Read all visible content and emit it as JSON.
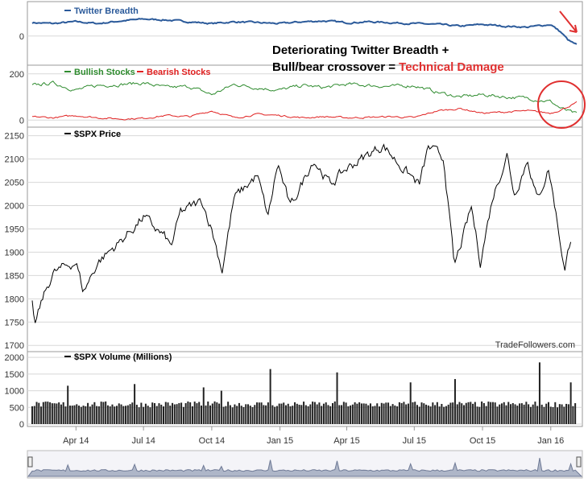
{
  "annotation": {
    "line1": "Deteriorating Twitter Breadth +",
    "line2_prefix": "Bull/bear crossover = ",
    "line2_highlight": "Technical Damage",
    "highlight_color": "#e03030"
  },
  "credit": "TradeFollowers.com",
  "colors": {
    "breadth": "#2b5a9a",
    "bullish": "#2e8b2e",
    "bearish": "#e02020",
    "price": "#000000",
    "volume": "#222222",
    "grid": "#d8d8d8",
    "navigator_fill": "#aeb6c8",
    "annotation_mark": "#e03030"
  },
  "chart_data": [
    {
      "type": "line",
      "title": "",
      "series": [
        {
          "name": "Twitter Breadth"
        }
      ],
      "y_ticks": [
        "0"
      ],
      "ylim": [
        -30,
        35
      ],
      "start": "2014-02-01",
      "end": "2016-02-05",
      "points": [
        [
          "2014-02-01",
          15
        ],
        [
          "2014-03-01",
          14
        ],
        [
          "2014-04-01",
          16
        ],
        [
          "2014-05-01",
          14
        ],
        [
          "2014-06-01",
          17
        ],
        [
          "2014-07-01",
          19
        ],
        [
          "2014-08-01",
          18
        ],
        [
          "2014-09-01",
          16
        ],
        [
          "2014-10-01",
          14
        ],
        [
          "2014-11-01",
          16
        ],
        [
          "2014-12-01",
          15
        ],
        [
          "2015-01-01",
          14
        ],
        [
          "2015-02-01",
          16
        ],
        [
          "2015-03-01",
          17
        ],
        [
          "2015-04-01",
          15
        ],
        [
          "2015-05-01",
          16
        ],
        [
          "2015-06-01",
          15
        ],
        [
          "2015-07-01",
          14
        ],
        [
          "2015-08-01",
          13
        ],
        [
          "2015-09-01",
          11
        ],
        [
          "2015-10-01",
          13
        ],
        [
          "2015-11-01",
          11
        ],
        [
          "2015-12-01",
          10
        ],
        [
          "2016-01-01",
          13
        ],
        [
          "2016-01-15",
          4
        ],
        [
          "2016-01-25",
          -5
        ],
        [
          "2016-02-05",
          -10
        ]
      ]
    },
    {
      "type": "line",
      "title": "",
      "series": [
        {
          "name": "Bullish Stocks",
          "points": [
            [
              "2014-02-01",
              150
            ],
            [
              "2014-03-01",
              160
            ],
            [
              "2014-04-01",
              130
            ],
            [
              "2014-05-01",
              150
            ],
            [
              "2014-06-01",
              155
            ],
            [
              "2014-07-01",
              160
            ],
            [
              "2014-08-01",
              140
            ],
            [
              "2014-09-01",
              145
            ],
            [
              "2014-10-01",
              110
            ],
            [
              "2014-11-01",
              155
            ],
            [
              "2014-12-01",
              140
            ],
            [
              "2015-01-01",
              130
            ],
            [
              "2015-02-01",
              150
            ],
            [
              "2015-03-01",
              140
            ],
            [
              "2015-04-01",
              155
            ],
            [
              "2015-05-01",
              150
            ],
            [
              "2015-06-01",
              145
            ],
            [
              "2015-07-01",
              150
            ],
            [
              "2015-08-01",
              120
            ],
            [
              "2015-09-01",
              100
            ],
            [
              "2015-10-01",
              110
            ],
            [
              "2015-11-01",
              100
            ],
            [
              "2015-12-01",
              95
            ],
            [
              "2016-01-01",
              80
            ],
            [
              "2016-01-15",
              50
            ],
            [
              "2016-02-05",
              25
            ]
          ]
        },
        {
          "name": "Bearish Stocks",
          "points": [
            [
              "2014-02-01",
              15
            ],
            [
              "2014-03-01",
              10
            ],
            [
              "2014-04-01",
              20
            ],
            [
              "2014-05-01",
              10
            ],
            [
              "2014-06-01",
              5
            ],
            [
              "2014-07-01",
              8
            ],
            [
              "2014-08-01",
              20
            ],
            [
              "2014-09-01",
              15
            ],
            [
              "2014-10-01",
              40
            ],
            [
              "2014-11-01",
              10
            ],
            [
              "2014-12-01",
              25
            ],
            [
              "2015-01-01",
              20
            ],
            [
              "2015-02-01",
              10
            ],
            [
              "2015-03-01",
              15
            ],
            [
              "2015-04-01",
              10
            ],
            [
              "2015-05-01",
              12
            ],
            [
              "2015-06-01",
              15
            ],
            [
              "2015-07-01",
              10
            ],
            [
              "2015-08-01",
              40
            ],
            [
              "2015-09-01",
              50
            ],
            [
              "2015-10-01",
              30
            ],
            [
              "2015-11-01",
              35
            ],
            [
              "2015-12-01",
              40
            ],
            [
              "2016-01-01",
              30
            ],
            [
              "2016-01-15",
              45
            ],
            [
              "2016-02-05",
              75
            ]
          ]
        }
      ],
      "y_ticks": [
        "0",
        "200"
      ],
      "ylim": [
        -20,
        220
      ]
    },
    {
      "type": "line",
      "title": "",
      "series": [
        {
          "name": "$SPX Price"
        }
      ],
      "y_ticks": [
        "1700",
        "1750",
        "1800",
        "1850",
        "1900",
        "1950",
        "2000",
        "2050",
        "2100",
        "2150"
      ],
      "ylim": [
        1690,
        2165
      ],
      "points": [
        [
          "2014-02-01",
          1790
        ],
        [
          "2014-02-05",
          1745
        ],
        [
          "2014-02-15",
          1800
        ],
        [
          "2014-03-01",
          1855
        ],
        [
          "2014-04-01",
          1880
        ],
        [
          "2014-04-11",
          1815
        ],
        [
          "2014-05-01",
          1880
        ],
        [
          "2014-06-01",
          1925
        ],
        [
          "2014-07-01",
          1975
        ],
        [
          "2014-07-31",
          1930
        ],
        [
          "2014-08-07",
          1910
        ],
        [
          "2014-08-20",
          1985
        ],
        [
          "2014-09-18",
          2010
        ],
        [
          "2014-10-01",
          1950
        ],
        [
          "2014-10-15",
          1862
        ],
        [
          "2014-10-31",
          2015
        ],
        [
          "2014-12-01",
          2065
        ],
        [
          "2014-12-16",
          1975
        ],
        [
          "2014-12-29",
          2090
        ],
        [
          "2015-01-15",
          1995
        ],
        [
          "2015-02-15",
          2100
        ],
        [
          "2015-03-10",
          2045
        ],
        [
          "2015-04-01",
          2080
        ],
        [
          "2015-05-20",
          2130
        ],
        [
          "2015-06-10",
          2090
        ],
        [
          "2015-07-08",
          2045
        ],
        [
          "2015-07-20",
          2125
        ],
        [
          "2015-08-10",
          2100
        ],
        [
          "2015-08-24",
          1867
        ],
        [
          "2015-09-16",
          1995
        ],
        [
          "2015-09-28",
          1880
        ],
        [
          "2015-10-15",
          2020
        ],
        [
          "2015-11-03",
          2110
        ],
        [
          "2015-11-13",
          2025
        ],
        [
          "2015-12-01",
          2100
        ],
        [
          "2015-12-14",
          2010
        ],
        [
          "2015-12-29",
          2080
        ],
        [
          "2016-01-05",
          2015
        ],
        [
          "2016-01-20",
          1860
        ],
        [
          "2016-01-29",
          1940
        ]
      ]
    },
    {
      "type": "bar",
      "title": "",
      "series": [
        {
          "name": "$SPX Volume (Millions)"
        }
      ],
      "y_ticks": [
        "0",
        "500",
        "1000",
        "1500",
        "2000"
      ],
      "ylim": [
        0,
        2100
      ],
      "typical_volume": 600,
      "spikes": [
        [
          "2014-03-21",
          1150
        ],
        [
          "2014-06-20",
          1200
        ],
        [
          "2014-09-19",
          1100
        ],
        [
          "2014-10-15",
          1000
        ],
        [
          "2014-12-19",
          1650
        ],
        [
          "2015-03-20",
          1550
        ],
        [
          "2015-06-26",
          1250
        ],
        [
          "2015-08-24",
          1350
        ],
        [
          "2015-12-18",
          1850
        ],
        [
          "2016-01-29",
          1250
        ]
      ]
    }
  ],
  "x_axis": {
    "labels": [
      "Apr 14",
      "Jul 14",
      "Oct 14",
      "Jan 15",
      "Apr 15",
      "Jul 15",
      "Oct 15",
      "Jan 16"
    ]
  }
}
